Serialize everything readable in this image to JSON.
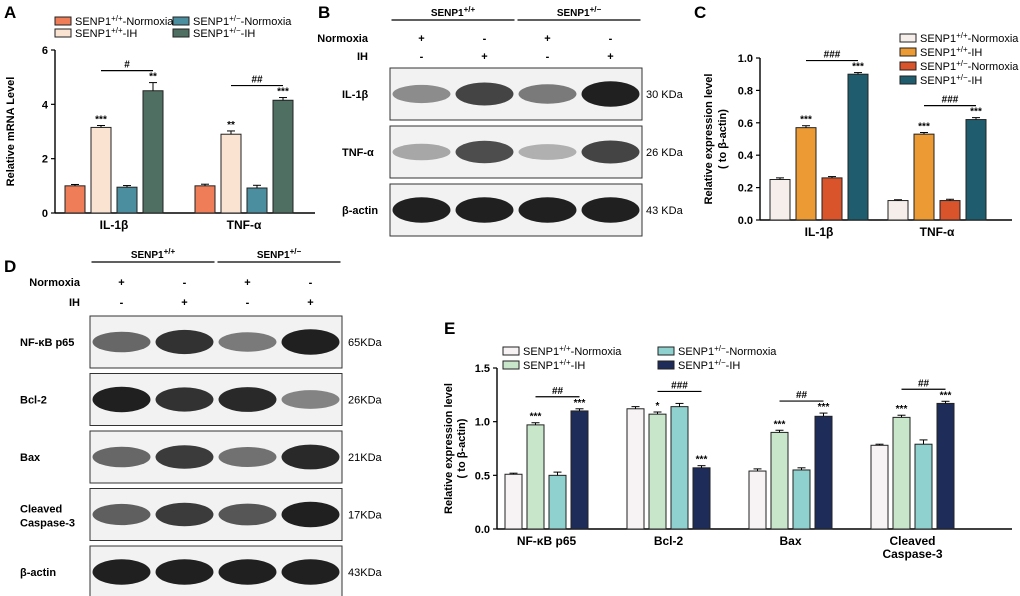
{
  "panels": {
    "A": "A",
    "B": "B",
    "C": "C",
    "D": "D",
    "E": "E"
  },
  "chart_data": [
    {
      "panel": "A",
      "type": "bar",
      "ylabel": "Relative mRNA Level",
      "ylim": [
        0,
        6
      ],
      "yticks": [
        0,
        2,
        4,
        6
      ],
      "categories": [
        "IL-1β",
        "TNF-α"
      ],
      "series": [
        {
          "name": "SENP1+/+-Normoxia",
          "sup": "+/+",
          "suffix": "-Normoxia",
          "color": "#ef7d57",
          "values": [
            1.0,
            1.0
          ],
          "errors": [
            0.05,
            0.06
          ],
          "stars": [
            "",
            ""
          ]
        },
        {
          "name": "SENP1+/+-IH",
          "sup": "+/+",
          "suffix": "-IH",
          "color": "#fbe3d2",
          "values": [
            3.15,
            2.9
          ],
          "errors": [
            0.07,
            0.12
          ],
          "stars": [
            "***",
            "**"
          ]
        },
        {
          "name": "SENP1+/−-Normoxia",
          "sup": "+/−",
          "suffix": "-Normoxia",
          "color": "#4a8ea0",
          "values": [
            0.95,
            0.92
          ],
          "errors": [
            0.06,
            0.1
          ],
          "stars": [
            "",
            ""
          ]
        },
        {
          "name": "SENP1+/−-IH",
          "sup": "+/−",
          "suffix": "-IH",
          "color": "#4f6f62",
          "values": [
            4.5,
            4.15
          ],
          "errors": [
            0.3,
            0.1
          ],
          "stars": [
            "**",
            "***"
          ]
        }
      ],
      "brackets": [
        {
          "category": 0,
          "label": "#"
        },
        {
          "category": 1,
          "label": "##"
        }
      ]
    },
    {
      "panel": "C",
      "type": "bar",
      "ylabel": "Relative expression level",
      "ylabel2": "( to β-actin)",
      "ylim": [
        0,
        1.0
      ],
      "yticks": [
        0.0,
        0.2,
        0.4,
        0.6,
        0.8,
        1.0
      ],
      "tickfmt": 1,
      "categories": [
        "IL-1β",
        "TNF-α"
      ],
      "series": [
        {
          "name": "SENP1+/+-Normoxia",
          "sup": "+/+",
          "suffix": "-Normoxia",
          "color": "#f5eeea",
          "values": [
            0.25,
            0.12
          ],
          "errors": [
            0.01,
            0.005
          ],
          "stars": [
            "",
            ""
          ]
        },
        {
          "name": "SENP1+/+-IH",
          "sup": "+/+",
          "suffix": "-IH",
          "color": "#ec9a33",
          "values": [
            0.57,
            0.53
          ],
          "errors": [
            0.012,
            0.01
          ],
          "stars": [
            "***",
            "***"
          ]
        },
        {
          "name": "SENP1+/−-Normoxia",
          "sup": "+/−",
          "suffix": "-Normoxia",
          "color": "#d9532b",
          "values": [
            0.26,
            0.12
          ],
          "errors": [
            0.008,
            0.008
          ],
          "stars": [
            "",
            ""
          ]
        },
        {
          "name": "SENP1+/−-IH",
          "sup": "+/−",
          "suffix": "-IH",
          "color": "#1f5d6e",
          "values": [
            0.9,
            0.62
          ],
          "errors": [
            0.01,
            0.012
          ],
          "stars": [
            "***",
            "***"
          ]
        }
      ],
      "brackets": [
        {
          "category": 0,
          "label": "###"
        },
        {
          "category": 1,
          "label": "###"
        }
      ]
    },
    {
      "panel": "E",
      "type": "bar",
      "ylabel": "Relative expression level",
      "ylabel2": "( to β-actin)",
      "ylim": [
        0,
        1.5
      ],
      "yticks": [
        0.0,
        0.5,
        1.0,
        1.5
      ],
      "tickfmt": 1,
      "categories": [
        "NF-κB p65",
        "Bcl-2",
        "Bax",
        "Cleaved Caspase-3"
      ],
      "series": [
        {
          "name": "SENP1+/+-Normoxia",
          "sup": "+/+",
          "suffix": "-Normoxia",
          "color": "#f7f3f4",
          "values": [
            0.51,
            1.12,
            0.54,
            0.78
          ],
          "errors": [
            0.01,
            0.02,
            0.02,
            0.01
          ],
          "stars": [
            "",
            "",
            "",
            ""
          ]
        },
        {
          "name": "SENP1+/+-IH",
          "sup": "+/+",
          "suffix": "-IH",
          "color": "#c8e6c9",
          "values": [
            0.97,
            1.07,
            0.9,
            1.04
          ],
          "errors": [
            0.02,
            0.02,
            0.02,
            0.02
          ],
          "stars": [
            "***",
            "*",
            "***",
            "***"
          ]
        },
        {
          "name": "SENP1+/−-Normoxia",
          "sup": "+/−",
          "suffix": "-Normoxia",
          "color": "#8fd1cf",
          "values": [
            0.5,
            1.14,
            0.55,
            0.79
          ],
          "errors": [
            0.03,
            0.03,
            0.02,
            0.04
          ],
          "stars": [
            "",
            "",
            "",
            ""
          ]
        },
        {
          "name": "SENP1+/−-IH",
          "sup": "+/−",
          "suffix": "-IH",
          "color": "#1e2c5a",
          "values": [
            1.1,
            0.57,
            1.05,
            1.17
          ],
          "errors": [
            0.02,
            0.02,
            0.03,
            0.02
          ],
          "stars": [
            "***",
            "***",
            "***",
            "***"
          ]
        }
      ],
      "brackets": [
        {
          "category": 0,
          "label": "##"
        },
        {
          "category": 1,
          "label": "###"
        },
        {
          "category": 2,
          "label": "##"
        },
        {
          "category": 3,
          "label": "##"
        }
      ]
    }
  ],
  "blots": [
    {
      "panel": "B",
      "genotypes": [
        {
          "base": "SENP1",
          "sup": "+/+"
        },
        {
          "base": "SENP1",
          "sup": "+/−"
        }
      ],
      "conditions": [
        {
          "label": "Normoxia",
          "marks": [
            "+",
            "-",
            "+",
            "-"
          ]
        },
        {
          "label": "IH",
          "marks": [
            "-",
            "+",
            "-",
            "+"
          ]
        }
      ],
      "rows": [
        {
          "label": "IL-1β",
          "size": "30 KDa",
          "intensity": [
            0.35,
            0.75,
            0.45,
            0.95
          ]
        },
        {
          "label": "TNF-α",
          "size": "26 KDa",
          "intensity": [
            0.2,
            0.7,
            0.15,
            0.75
          ]
        },
        {
          "label": "β-actin",
          "size": "43 KDa",
          "intensity": [
            0.95,
            0.95,
            0.95,
            0.95
          ]
        }
      ]
    },
    {
      "panel": "D",
      "genotypes": [
        {
          "base": "SENP1",
          "sup": "+/+"
        },
        {
          "base": "SENP1",
          "sup": "+/−"
        }
      ],
      "conditions": [
        {
          "label": "Normoxia",
          "marks": [
            "+",
            "-",
            "+",
            "-"
          ]
        },
        {
          "label": "IH",
          "marks": [
            "-",
            "+",
            "-",
            "+"
          ]
        }
      ],
      "rows": [
        {
          "label": "NF-κB p65",
          "label2": "",
          "size": "65KDa",
          "intensity": [
            0.55,
            0.85,
            0.45,
            0.95
          ]
        },
        {
          "label": "Bcl-2",
          "label2": "",
          "size": "26KDa",
          "intensity": [
            0.95,
            0.85,
            0.9,
            0.4
          ]
        },
        {
          "label": "Bax",
          "label2": "",
          "size": "21KDa",
          "intensity": [
            0.55,
            0.8,
            0.5,
            0.9
          ]
        },
        {
          "label": "Cleaved",
          "label2": "Caspase-3",
          "size": "17KDa",
          "intensity": [
            0.6,
            0.8,
            0.65,
            0.95
          ]
        },
        {
          "label": "β-actin",
          "label2": "",
          "size": "43KDa",
          "intensity": [
            0.95,
            0.95,
            0.95,
            0.95
          ]
        }
      ]
    }
  ]
}
